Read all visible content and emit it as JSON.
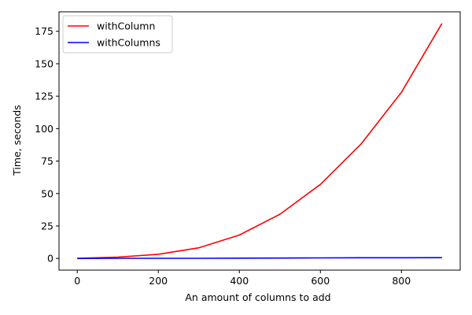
{
  "chart_data": {
    "type": "line",
    "xlabel": "An amount of columns to add",
    "ylabel": "Time, seconds",
    "xlim": [
      -45,
      945
    ],
    "ylim": [
      -9,
      190
    ],
    "x_ticks": [
      0,
      200,
      400,
      600,
      800
    ],
    "y_ticks": [
      0,
      25,
      50,
      75,
      100,
      125,
      150,
      175
    ],
    "grid": false,
    "legend_position": "upper-left",
    "x": [
      0,
      100,
      200,
      300,
      400,
      500,
      600,
      700,
      800,
      900
    ],
    "series": [
      {
        "name": "withColumn",
        "color": "#ff0000",
        "values": [
          0.1,
          1.0,
          3.2,
          8.2,
          18.0,
          34.0,
          57.0,
          88.0,
          128.0,
          181.0
        ]
      },
      {
        "name": "withColumns",
        "color": "#0000ff",
        "values": [
          0.0,
          0.1,
          0.1,
          0.1,
          0.2,
          0.3,
          0.4,
          0.5,
          0.5,
          0.6
        ]
      }
    ]
  }
}
